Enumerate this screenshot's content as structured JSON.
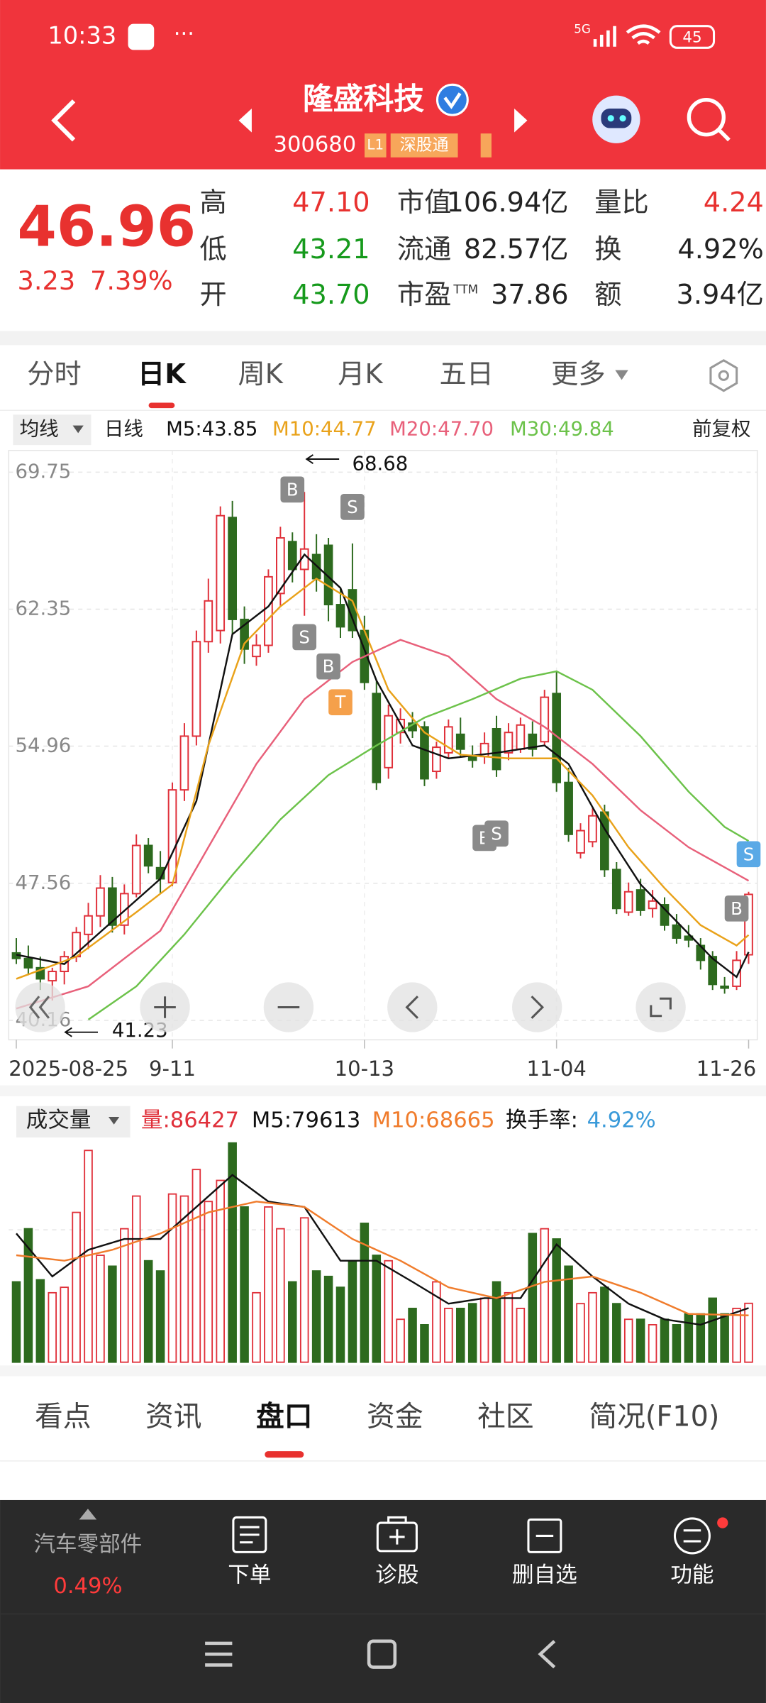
{
  "status_bar": {
    "time": "10:33",
    "network": "5G",
    "battery": "45"
  },
  "header": {
    "name": "隆盛科技",
    "code": "300680",
    "badges": [
      "L1",
      "深股通"
    ]
  },
  "quote": {
    "price": "46.96",
    "change": "3.23",
    "change_pct": "7.39%",
    "fields": [
      {
        "label": "高",
        "value": "47.10",
        "color": "#e8312f"
      },
      {
        "label": "低",
        "value": "43.21",
        "color": "#169a1c"
      },
      {
        "label": "开",
        "value": "43.70",
        "color": "#169a1c"
      },
      {
        "label": "市值",
        "value": "106.94亿",
        "color": "#222222"
      },
      {
        "label": "流通",
        "value": "82.57亿",
        "color": "#222222"
      },
      {
        "label": "市盈",
        "sup": "TTM",
        "value": "37.86",
        "color": "#222222"
      },
      {
        "label": "量比",
        "value": "4.24",
        "color": "#e8312f"
      },
      {
        "label": "换",
        "value": "4.92%",
        "color": "#222222"
      },
      {
        "label": "额",
        "value": "3.94亿",
        "color": "#222222"
      }
    ]
  },
  "tabs": {
    "items": [
      "分时",
      "日K",
      "周K",
      "月K",
      "五日",
      "更多"
    ],
    "active": 1
  },
  "ma_legend": {
    "selector": "均线",
    "period": "日线",
    "adjust": "前复权",
    "items": [
      {
        "label": "M5:43.85",
        "color": "#111111"
      },
      {
        "label": "M10:44.77",
        "color": "#e9a21a"
      },
      {
        "label": "M20:47.70",
        "color": "#e8607a"
      },
      {
        "label": "M30:49.84",
        "color": "#6cc24a"
      }
    ]
  },
  "kline": {
    "type": "candlestick",
    "up_color": "#e0303a",
    "down_color": "#2d6a1e",
    "ylim": [
      39.11,
      70.92
    ],
    "yticks": [
      69.75,
      62.35,
      54.96,
      47.56,
      40.16
    ],
    "grid": true,
    "xlim": [
      0,
      61
    ],
    "xticks": [
      {
        "value": 0,
        "label": "2025-08-25"
      },
      {
        "value": 13,
        "label": "9-11"
      },
      {
        "value": 29,
        "label": "10-13"
      },
      {
        "value": 45,
        "label": "11-04"
      },
      {
        "value": 61,
        "label": "11-26"
      }
    ],
    "candles": [
      [
        43.8,
        44.6,
        43.2,
        43.5
      ],
      [
        43.5,
        44.2,
        42.6,
        43.0
      ],
      [
        43.0,
        43.6,
        41.8,
        42.4
      ],
      [
        42.3,
        43.0,
        41.23,
        42.8
      ],
      [
        42.8,
        43.9,
        42.1,
        43.6
      ],
      [
        43.6,
        45.2,
        43.3,
        44.9
      ],
      [
        44.8,
        46.5,
        44.0,
        45.8
      ],
      [
        45.8,
        48.0,
        45.2,
        47.3
      ],
      [
        47.3,
        47.9,
        44.9,
        45.3
      ],
      [
        45.3,
        47.5,
        44.8,
        47.0
      ],
      [
        47.0,
        50.2,
        46.8,
        49.6
      ],
      [
        49.6,
        50.0,
        48.1,
        48.5
      ],
      [
        48.4,
        49.3,
        47.0,
        47.8
      ],
      [
        47.6,
        53.0,
        47.4,
        52.6
      ],
      [
        52.6,
        56.2,
        52.0,
        55.5
      ],
      [
        55.5,
        61.2,
        55.0,
        60.6
      ],
      [
        60.6,
        64.0,
        60.0,
        62.8
      ],
      [
        61.2,
        67.9,
        60.5,
        67.4
      ],
      [
        67.3,
        68.2,
        61.0,
        61.8
      ],
      [
        61.8,
        62.5,
        59.4,
        60.2
      ],
      [
        59.8,
        61.0,
        59.3,
        60.4
      ],
      [
        60.4,
        64.5,
        60.0,
        64.1
      ],
      [
        63.2,
        66.8,
        62.5,
        66.2
      ],
      [
        66.0,
        66.5,
        63.8,
        64.5
      ],
      [
        64.5,
        68.68,
        62.0,
        65.6
      ],
      [
        65.3,
        66.4,
        63.3,
        64.0
      ],
      [
        65.8,
        66.2,
        61.7,
        62.6
      ],
      [
        62.6,
        63.5,
        60.8,
        61.4
      ],
      [
        63.4,
        65.9,
        60.8,
        61.2
      ],
      [
        61.2,
        62.0,
        58.0,
        58.4
      ],
      [
        57.8,
        58.5,
        52.6,
        53.0
      ],
      [
        53.8,
        57.2,
        53.2,
        56.6
      ],
      [
        55.7,
        57.0,
        55.1,
        56.4
      ],
      [
        56.2,
        56.8,
        55.4,
        55.8
      ],
      [
        56.0,
        56.3,
        52.8,
        53.2
      ],
      [
        53.6,
        55.2,
        53.2,
        54.9
      ],
      [
        54.6,
        56.4,
        54.3,
        56.0
      ],
      [
        55.6,
        56.5,
        54.4,
        54.8
      ],
      [
        54.4,
        55.0,
        53.8,
        54.2
      ],
      [
        54.4,
        55.7,
        54.0,
        55.1
      ],
      [
        55.9,
        56.6,
        53.3,
        53.7
      ],
      [
        54.6,
        56.2,
        54.2,
        55.7
      ],
      [
        54.8,
        56.5,
        54.6,
        56.1
      ],
      [
        55.6,
        56.3,
        54.4,
        54.8
      ],
      [
        55.2,
        58.0,
        55.0,
        57.6
      ],
      [
        57.8,
        59.0,
        52.5,
        53.0
      ],
      [
        53.0,
        53.8,
        49.8,
        50.2
      ],
      [
        49.2,
        50.8,
        48.9,
        50.4
      ],
      [
        49.8,
        51.6,
        49.5,
        51.2
      ],
      [
        51.4,
        51.8,
        47.9,
        48.3
      ],
      [
        48.3,
        48.7,
        45.9,
        46.2
      ],
      [
        46.0,
        47.6,
        45.8,
        47.1
      ],
      [
        47.2,
        47.8,
        45.8,
        46.1
      ],
      [
        46.2,
        47.2,
        45.7,
        46.6
      ],
      [
        46.4,
        46.8,
        45.0,
        45.3
      ],
      [
        45.3,
        45.9,
        44.3,
        44.6
      ],
      [
        44.7,
        45.3,
        44.1,
        44.5
      ],
      [
        44.2,
        44.6,
        42.9,
        43.4
      ],
      [
        43.6,
        43.9,
        41.8,
        42.1
      ],
      [
        42.0,
        42.5,
        41.6,
        41.9
      ],
      [
        42.0,
        43.9,
        41.8,
        43.4
      ],
      [
        43.7,
        47.1,
        43.21,
        46.96
      ]
    ],
    "series": [
      {
        "name": "M5",
        "color": "#111111",
        "x": [
          0,
          4,
          8,
          12,
          15,
          18,
          21,
          24,
          27,
          30,
          33,
          36,
          40,
          44,
          46,
          49,
          52,
          55,
          58,
          60,
          61
        ],
        "values": [
          43.7,
          43.2,
          45.5,
          47.8,
          52,
          61,
          62.5,
          65.3,
          63.5,
          58.5,
          55,
          54.3,
          54.6,
          55,
          54,
          50.5,
          47.5,
          45.5,
          43.5,
          42.5,
          43.85
        ]
      },
      {
        "name": "M10",
        "color": "#e9a21a",
        "x": [
          0,
          5,
          10,
          13,
          16,
          19,
          22,
          25,
          28,
          31,
          34,
          37,
          41,
          45,
          48,
          51,
          54,
          57,
          60,
          61
        ],
        "values": [
          42.4,
          43.6,
          46,
          47.5,
          55,
          60.5,
          62.5,
          64,
          62.8,
          58,
          55.7,
          54.5,
          54.3,
          54.3,
          52.3,
          49.5,
          47.3,
          45.3,
          44.2,
          44.77
        ]
      },
      {
        "name": "M20",
        "color": "#e8607a",
        "x": [
          0,
          6,
          12,
          16,
          20,
          24,
          28,
          32,
          36,
          40,
          44,
          48,
          52,
          56,
          61
        ],
        "values": [
          40.8,
          42,
          45,
          49.5,
          54,
          57.5,
          59.5,
          60.7,
          59.8,
          57.5,
          56,
          54,
          51.5,
          49.5,
          47.7
        ]
      },
      {
        "name": "M30",
        "color": "#6cc24a",
        "x": [
          6,
          10,
          14,
          18,
          22,
          26,
          30,
          34,
          38,
          42,
          45,
          48,
          52,
          56,
          59,
          61
        ],
        "values": [
          40.2,
          42,
          44.8,
          48,
          51,
          53.4,
          55,
          56.5,
          57.5,
          58.6,
          59.0,
          58,
          55.5,
          52.5,
          50.6,
          49.84
        ]
      }
    ],
    "high_label": {
      "label": "68.68",
      "x": 24
    },
    "low_label": {
      "label": "41.23",
      "x": 3
    },
    "markers": [
      {
        "label": "B",
        "x": 23,
        "color": "#8a8a8a"
      },
      {
        "label": "S",
        "x": 24,
        "color": "#8a8a8a"
      },
      {
        "label": "B",
        "x": 26,
        "color": "#8a8a8a"
      },
      {
        "label": "S",
        "x": 28,
        "color": "#8a8a8a"
      },
      {
        "label": "T",
        "x": 27,
        "color": "#f5a04a"
      },
      {
        "label": "B",
        "x": 39,
        "color": "#8a8a8a"
      },
      {
        "label": "S",
        "x": 40,
        "color": "#8a8a8a"
      },
      {
        "label": "B",
        "x": 60,
        "color": "#8a8a8a"
      },
      {
        "label": "S",
        "x": 61,
        "color": "#5aa9e6"
      }
    ]
  },
  "volume": {
    "type": "bar",
    "selector": "成交量",
    "vlim": [
      0,
      330000
    ],
    "legend": [
      {
        "label": "量:86427",
        "color": "#e0303a"
      },
      {
        "label": "M5:79613",
        "color": "#111111"
      },
      {
        "label": "M10:68665",
        "color": "#f07c2c"
      },
      {
        "label": "换手率:",
        "color": "#111111"
      },
      {
        "label": "4.92%",
        "color": "#3a9ad9"
      }
    ],
    "values": [
      118000,
      196000,
      121000,
      102000,
      110000,
      220000,
      311000,
      157000,
      141000,
      196000,
      244000,
      149000,
      134000,
      247000,
      244000,
      283000,
      236000,
      267000,
      322000,
      228000,
      102000,
      228000,
      196000,
      118000,
      212000,
      134000,
      126000,
      110000,
      149000,
      204000,
      157000,
      149000,
      63000,
      79000,
      55000,
      118000,
      79000,
      79000,
      86000,
      94000,
      118000,
      102000,
      79000,
      189000,
      196000,
      181000,
      141000,
      86000,
      102000,
      110000,
      86000,
      63000,
      63000,
      55000,
      63000,
      55000,
      71000,
      71000,
      94000,
      71000,
      79000,
      86427
    ],
    "series": [
      {
        "name": "M5",
        "color": "#111111",
        "x": [
          0,
          3,
          6,
          9,
          12,
          15,
          18,
          21,
          24,
          27,
          30,
          33,
          36,
          39,
          42,
          45,
          48,
          51,
          54,
          57,
          61
        ],
        "values": [
          189000,
          126000,
          165000,
          181000,
          181000,
          228000,
          275000,
          236000,
          228000,
          149000,
          149000,
          118000,
          86000,
          94000,
          94000,
          173000,
          126000,
          86000,
          63000,
          55000,
          79613
        ]
      },
      {
        "name": "M10",
        "color": "#f07c2c",
        "x": [
          0,
          4,
          8,
          12,
          16,
          20,
          24,
          28,
          32,
          36,
          40,
          44,
          48,
          52,
          56,
          61
        ],
        "values": [
          157000,
          149000,
          165000,
          189000,
          220000,
          236000,
          228000,
          181000,
          149000,
          110000,
          94000,
          118000,
          126000,
          102000,
          71000,
          68665
        ]
      }
    ]
  },
  "bottom_tabs": {
    "items": [
      "看点",
      "资讯",
      "盘口",
      "资金",
      "社区",
      "简况(F10)"
    ],
    "active": 2
  },
  "footer": {
    "sector": "汽车零部件",
    "sector_change": "0.49%",
    "buttons": [
      "下单",
      "诊股",
      "删自选",
      "功能"
    ]
  }
}
